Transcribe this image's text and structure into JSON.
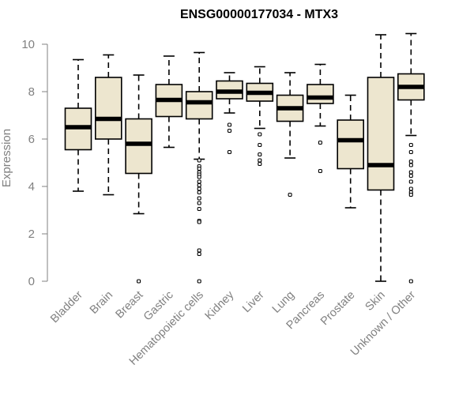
{
  "chart_data": {
    "type": "box",
    "title": "ENSG00000177034 - MTX3",
    "xlabel": "",
    "ylabel": "Expression",
    "ylim": [
      0,
      10.5
    ],
    "yticks": [
      0,
      2,
      4,
      6,
      8,
      10
    ],
    "grid": false,
    "colors": {
      "box_fill": "#ede6cf",
      "outline": "#000000",
      "axis": "#808080"
    },
    "categories": [
      "Bladder",
      "Brain",
      "Breast",
      "Gastric",
      "Hematopoietic cells",
      "Kidney",
      "Liver",
      "Lung",
      "Pancreas",
      "Prostate",
      "Skin",
      "Unknown / Other"
    ],
    "boxes": [
      {
        "name": "Bladder",
        "whisker_low": 3.8,
        "q1": 5.55,
        "median": 6.5,
        "q3": 7.3,
        "whisker_high": 9.35,
        "outliers": []
      },
      {
        "name": "Brain",
        "whisker_low": 3.65,
        "q1": 6.0,
        "median": 6.85,
        "q3": 8.6,
        "whisker_high": 9.55,
        "outliers": []
      },
      {
        "name": "Breast",
        "whisker_low": 2.85,
        "q1": 4.55,
        "median": 5.8,
        "q3": 6.85,
        "whisker_high": 8.7,
        "outliers": [
          0.0
        ]
      },
      {
        "name": "Gastric",
        "whisker_low": 5.65,
        "q1": 6.95,
        "median": 7.65,
        "q3": 8.3,
        "whisker_high": 9.5,
        "outliers": []
      },
      {
        "name": "Hematopoietic cells",
        "whisker_low": 5.15,
        "q1": 6.85,
        "median": 7.55,
        "q3": 8.0,
        "whisker_high": 9.65,
        "outliers": [
          5.1,
          4.85,
          4.75,
          4.6,
          4.5,
          4.4,
          4.2,
          4.05,
          3.9,
          3.75,
          3.5,
          3.3,
          3.05,
          2.55,
          2.5,
          1.3,
          1.15,
          0.0
        ]
      },
      {
        "name": "Kidney",
        "whisker_low": 7.1,
        "q1": 7.7,
        "median": 8.0,
        "q3": 8.45,
        "whisker_high": 8.8,
        "outliers": [
          6.6,
          6.35,
          5.45
        ]
      },
      {
        "name": "Liver",
        "whisker_low": 6.45,
        "q1": 7.6,
        "median": 7.95,
        "q3": 8.35,
        "whisker_high": 9.05,
        "outliers": [
          6.2,
          5.75,
          5.35,
          5.1,
          4.95
        ]
      },
      {
        "name": "Lung",
        "whisker_low": 5.2,
        "q1": 6.75,
        "median": 7.3,
        "q3": 7.85,
        "whisker_high": 8.8,
        "outliers": [
          3.65
        ]
      },
      {
        "name": "Pancreas",
        "whisker_low": 6.55,
        "q1": 7.5,
        "median": 7.75,
        "q3": 8.3,
        "whisker_high": 9.15,
        "outliers": [
          5.85,
          4.65
        ]
      },
      {
        "name": "Prostate",
        "whisker_low": 3.1,
        "q1": 4.75,
        "median": 5.95,
        "q3": 6.8,
        "whisker_high": 7.85,
        "outliers": []
      },
      {
        "name": "Skin",
        "whisker_low": 0.0,
        "q1": 3.85,
        "median": 4.9,
        "q3": 8.6,
        "whisker_high": 10.4,
        "outliers": []
      },
      {
        "name": "Unknown / Other",
        "whisker_low": 6.15,
        "q1": 7.65,
        "median": 8.2,
        "q3": 8.75,
        "whisker_high": 10.45,
        "outliers": [
          5.75,
          5.45,
          5.05,
          4.9,
          4.6,
          4.45,
          4.2,
          3.9,
          3.75,
          3.65,
          0.0
        ]
      }
    ]
  }
}
